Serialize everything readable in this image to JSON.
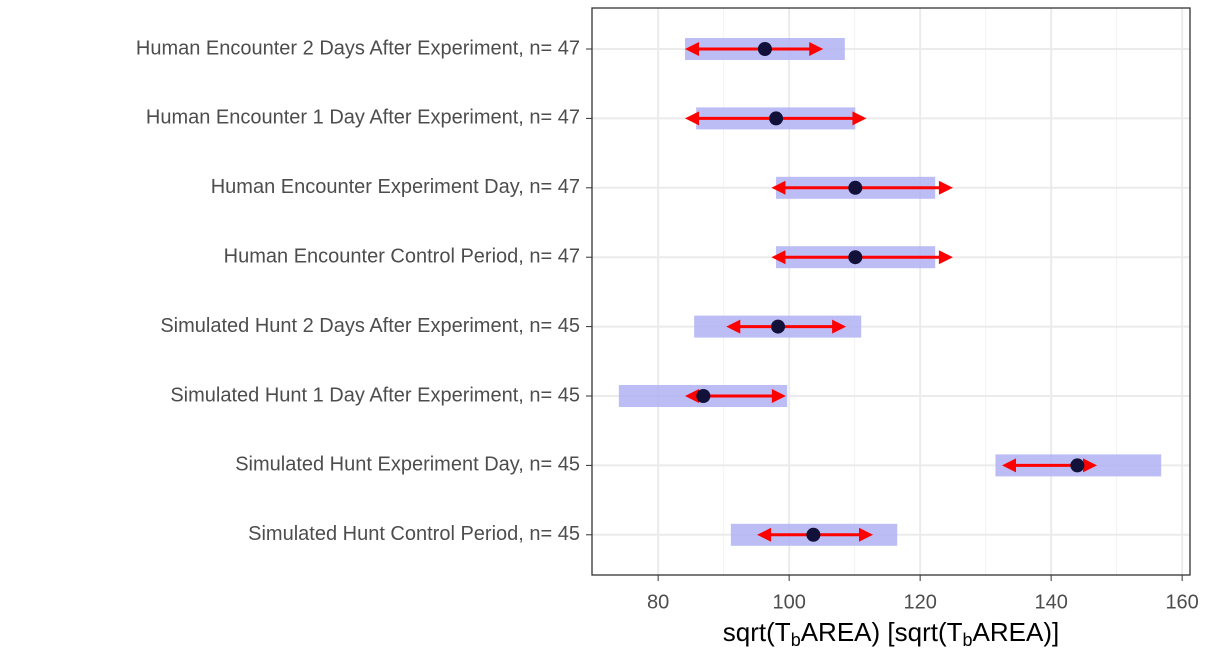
{
  "chart_data": {
    "type": "emmeans",
    "categories": [
      "Human Encounter 2 Days After Experiment, n= 47",
      "Human Encounter 1 Day After Experiment, n= 47",
      "Human Encounter Experiment Day, n= 47",
      "Human Encounter Control Period, n= 47",
      "Simulated Hunt 2 Days After Experiment, n= 45",
      "Simulated Hunt 1 Day After Experiment, n= 45",
      "Simulated Hunt Experiment Day, n= 45",
      "Simulated Hunt Control Period, n= 45"
    ],
    "means": [
      96.3,
      98.0,
      110.1,
      110.1,
      98.3,
      86.9,
      144.0,
      103.7
    ],
    "ci_lower": [
      84.1,
      85.8,
      98.0,
      98.0,
      85.5,
      74.0,
      131.5,
      91.1
    ],
    "ci_upper": [
      108.5,
      110.1,
      122.3,
      122.3,
      111.0,
      99.7,
      156.8,
      116.5
    ],
    "arrow_lower": [
      84.1,
      84.1,
      97.3,
      97.3,
      90.4,
      84.1,
      132.5,
      95.1
    ],
    "arrow_upper": [
      105.2,
      111.8,
      125.0,
      125.0,
      108.7,
      99.5,
      147.0,
      112.8
    ],
    "ci_color": "#b2b2f5",
    "arrow_color": "#ff0000",
    "point_color": "#11113a",
    "xlim": [
      69.9,
      161.2
    ],
    "xticks": [
      80,
      100,
      120,
      140,
      160
    ],
    "minor_xticks": [
      90,
      110,
      130,
      150
    ],
    "grid": true,
    "x_label": [
      {
        "text": "sqrt(T"
      },
      {
        "text": "b",
        "sub": true
      },
      {
        "text": "AREA) [sqrt(T"
      },
      {
        "text": "b",
        "sub": true
      },
      {
        "text": "AREA)]"
      }
    ]
  }
}
